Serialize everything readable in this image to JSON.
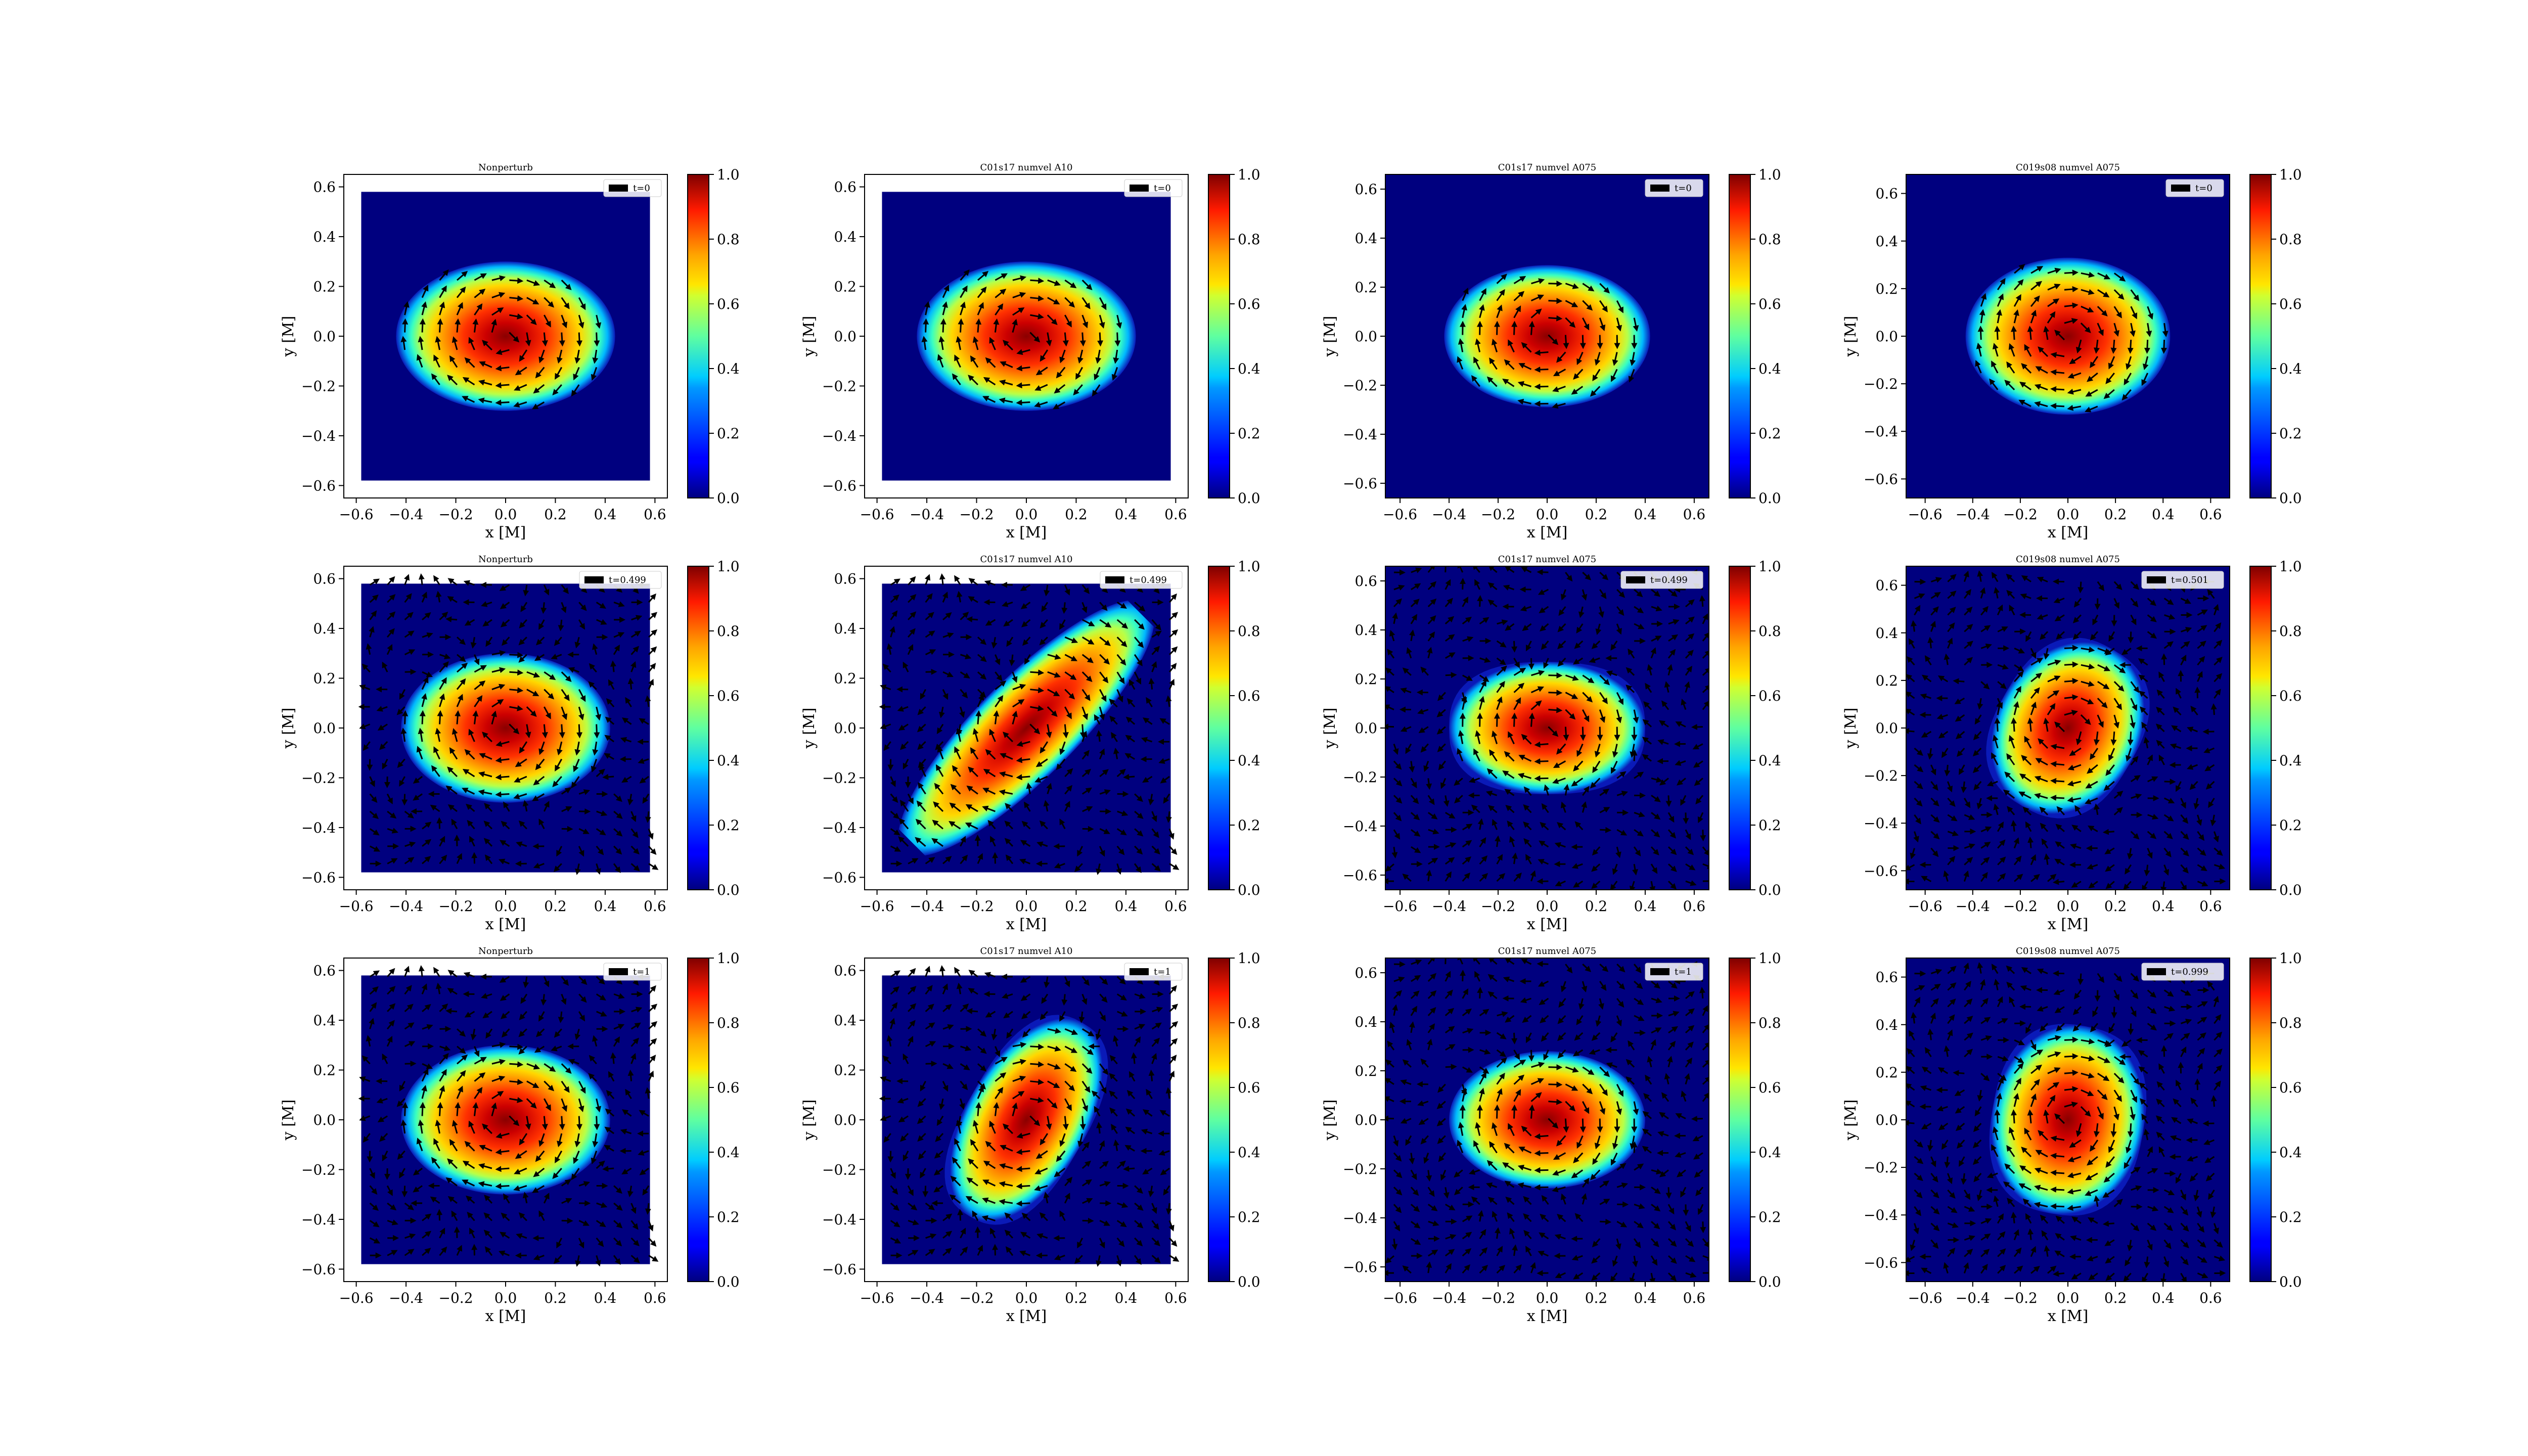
{
  "figure": {
    "rows": 3,
    "cols": 4,
    "colormap": "jet",
    "background": "#ffffff"
  },
  "chart_data": [
    {
      "type": "heatmap",
      "title": "Nonperturb",
      "time_label": "t=0",
      "xlabel": "x [M]",
      "ylabel": "y [M]",
      "xlim": [
        -0.65,
        0.65
      ],
      "ylim": [
        -0.65,
        0.65
      ],
      "xticks": [
        "−0.6",
        "−0.4",
        "−0.2",
        "0.0",
        "0.2",
        "0.4",
        "0.6"
      ],
      "yticks": [
        "−0.6",
        "−0.4",
        "−0.2",
        "0.0",
        "0.2",
        "0.4",
        "0.6"
      ],
      "domain": [
        -0.58,
        0.58,
        -0.58,
        0.58
      ],
      "field_max": 1.0,
      "blob": {
        "cx": 0.0,
        "cy": 0.0,
        "a": 0.44,
        "b": 0.3,
        "angle_deg": 0,
        "shape": "ellipse"
      },
      "arrows": "inner",
      "colorbar": {
        "min": 0.0,
        "max": 1.0,
        "ticks": [
          "0.0",
          "0.2",
          "0.4",
          "0.6",
          "0.8",
          "1.0"
        ]
      }
    },
    {
      "type": "heatmap",
      "title": "C01s17 numvel A10",
      "time_label": "t=0",
      "xlabel": "x [M]",
      "ylabel": "y [M]",
      "xlim": [
        -0.65,
        0.65
      ],
      "ylim": [
        -0.65,
        0.65
      ],
      "xticks": [
        "−0.6",
        "−0.4",
        "−0.2",
        "0.0",
        "0.2",
        "0.4",
        "0.6"
      ],
      "yticks": [
        "−0.6",
        "−0.4",
        "−0.2",
        "0.0",
        "0.2",
        "0.4",
        "0.6"
      ],
      "domain": [
        -0.58,
        0.58,
        -0.58,
        0.58
      ],
      "field_max": 1.0,
      "blob": {
        "cx": 0.0,
        "cy": 0.0,
        "a": 0.44,
        "b": 0.3,
        "angle_deg": 0,
        "shape": "ellipse"
      },
      "arrows": "inner",
      "colorbar": {
        "min": 0.0,
        "max": 1.0,
        "ticks": [
          "0.0",
          "0.2",
          "0.4",
          "0.6",
          "0.8",
          "1.0"
        ]
      }
    },
    {
      "type": "heatmap",
      "title": "C01s17 numvel A075",
      "time_label": "t=0",
      "xlabel": "x [M]",
      "ylabel": "y [M]",
      "xlim": [
        -0.66,
        0.66
      ],
      "ylim": [
        -0.66,
        0.66
      ],
      "xticks": [
        "−0.6",
        "−0.4",
        "−0.2",
        "0.0",
        "0.2",
        "0.4",
        "0.6"
      ],
      "yticks": [
        "−0.6",
        "−0.4",
        "−0.2",
        "0.0",
        "0.2",
        "0.4",
        "0.6"
      ],
      "domain": [
        -0.66,
        0.66,
        -0.66,
        0.66
      ],
      "field_max": 1.0,
      "blob": {
        "cx": 0.0,
        "cy": 0.0,
        "a": 0.42,
        "b": 0.29,
        "angle_deg": 0,
        "shape": "ellipse"
      },
      "arrows": "inner",
      "colorbar": {
        "min": 0.0,
        "max": 1.0,
        "ticks": [
          "0.0",
          "0.2",
          "0.4",
          "0.6",
          "0.8",
          "1.0"
        ]
      }
    },
    {
      "type": "heatmap",
      "title": "C019s08 numvel A075",
      "time_label": "t=0",
      "xlabel": "x [M]",
      "ylabel": "y [M]",
      "xlim": [
        -0.68,
        0.68
      ],
      "ylim": [
        -0.68,
        0.68
      ],
      "xticks": [
        "−0.6",
        "−0.4",
        "−0.2",
        "0.0",
        "0.2",
        "0.4",
        "0.6"
      ],
      "yticks": [
        "−0.6",
        "−0.4",
        "−0.2",
        "0.0",
        "0.2",
        "0.4",
        "0.6"
      ],
      "domain": [
        -0.68,
        0.68,
        -0.68,
        0.68
      ],
      "field_max": 1.0,
      "blob": {
        "cx": 0.0,
        "cy": 0.0,
        "a": 0.43,
        "b": 0.33,
        "angle_deg": 0,
        "shape": "ellipse"
      },
      "arrows": "inner",
      "colorbar": {
        "min": 0.0,
        "max": 1.0,
        "ticks": [
          "0.0",
          "0.2",
          "0.4",
          "0.6",
          "0.8",
          "1.0"
        ]
      }
    },
    {
      "type": "heatmap",
      "title": "Nonperturb",
      "time_label": "t=0.499",
      "xlabel": "x [M]",
      "ylabel": "y [M]",
      "xlim": [
        -0.65,
        0.65
      ],
      "ylim": [
        -0.65,
        0.65
      ],
      "xticks": [
        "−0.6",
        "−0.4",
        "−0.2",
        "0.0",
        "0.2",
        "0.4",
        "0.6"
      ],
      "yticks": [
        "−0.6",
        "−0.4",
        "−0.2",
        "0.0",
        "0.2",
        "0.4",
        "0.6"
      ],
      "domain": [
        -0.58,
        0.58,
        -0.58,
        0.58
      ],
      "field_max": 1.0,
      "blob": {
        "cx": 0.0,
        "cy": 0.0,
        "a": 0.42,
        "b": 0.3,
        "angle_deg": 0,
        "shape": "ellipse"
      },
      "arrows": "full",
      "colorbar": {
        "min": 0.0,
        "max": 1.0,
        "ticks": [
          "0.0",
          "0.2",
          "0.4",
          "0.6",
          "0.8",
          "1.0"
        ]
      }
    },
    {
      "type": "heatmap",
      "title": "C01s17 numvel A10",
      "time_label": "t=0.499",
      "xlabel": "x [M]",
      "ylabel": "y [M]",
      "xlim": [
        -0.65,
        0.65
      ],
      "ylim": [
        -0.65,
        0.65
      ],
      "xticks": [
        "−0.6",
        "−0.4",
        "−0.2",
        "0.0",
        "0.2",
        "0.4",
        "0.6"
      ],
      "yticks": [
        "−0.6",
        "−0.4",
        "−0.2",
        "0.0",
        "0.2",
        "0.4",
        "0.6"
      ],
      "domain": [
        -0.58,
        0.58,
        -0.58,
        0.58
      ],
      "field_max": 1.0,
      "blob": {
        "cx": 0.0,
        "cy": 0.0,
        "a": 0.7,
        "b": 0.2,
        "angle_deg": 45,
        "shape": "ellipse"
      },
      "arrows": "full",
      "colorbar": {
        "min": 0.0,
        "max": 1.0,
        "ticks": [
          "0.0",
          "0.2",
          "0.4",
          "0.6",
          "0.8",
          "1.0"
        ]
      }
    },
    {
      "type": "heatmap",
      "title": "C01s17 numvel A075",
      "time_label": "t=0.499",
      "xlabel": "x [M]",
      "ylabel": "y [M]",
      "xlim": [
        -0.66,
        0.66
      ],
      "ylim": [
        -0.66,
        0.66
      ],
      "xticks": [
        "−0.6",
        "−0.4",
        "−0.2",
        "0.0",
        "0.2",
        "0.4",
        "0.6"
      ],
      "yticks": [
        "−0.6",
        "−0.4",
        "−0.2",
        "0.0",
        "0.2",
        "0.4",
        "0.6"
      ],
      "domain": [
        -0.66,
        0.66,
        -0.66,
        0.66
      ],
      "field_max": 1.0,
      "blob": {
        "cx": 0.0,
        "cy": 0.0,
        "a": 0.4,
        "b": 0.27,
        "angle_deg": 0,
        "shape": "superellipse"
      },
      "arrows": "full",
      "colorbar": {
        "min": 0.0,
        "max": 1.0,
        "ticks": [
          "0.0",
          "0.2",
          "0.4",
          "0.6",
          "0.8",
          "1.0"
        ]
      }
    },
    {
      "type": "heatmap",
      "title": "C019s08 numvel A075",
      "time_label": "t=0.501",
      "xlabel": "x [M]",
      "ylabel": "y [M]",
      "xlim": [
        -0.68,
        0.68
      ],
      "ylim": [
        -0.68,
        0.68
      ],
      "xticks": [
        "−0.6",
        "−0.4",
        "−0.2",
        "0.0",
        "0.2",
        "0.4",
        "0.6"
      ],
      "yticks": [
        "−0.6",
        "−0.4",
        "−0.2",
        "0.0",
        "0.2",
        "0.4",
        "0.6"
      ],
      "domain": [
        -0.68,
        0.68,
        -0.68,
        0.68
      ],
      "field_max": 1.0,
      "blob": {
        "cx": 0.0,
        "cy": 0.0,
        "a": 0.38,
        "b": 0.3,
        "angle_deg": 60,
        "shape": "superellipse"
      },
      "arrows": "full",
      "colorbar": {
        "min": 0.0,
        "max": 1.0,
        "ticks": [
          "0.0",
          "0.2",
          "0.4",
          "0.6",
          "0.8",
          "1.0"
        ]
      }
    },
    {
      "type": "heatmap",
      "title": "Nonperturb",
      "time_label": "t=1",
      "xlabel": "x [M]",
      "ylabel": "y [M]",
      "xlim": [
        -0.65,
        0.65
      ],
      "ylim": [
        -0.65,
        0.65
      ],
      "xticks": [
        "−0.6",
        "−0.4",
        "−0.2",
        "0.0",
        "0.2",
        "0.4",
        "0.6"
      ],
      "yticks": [
        "−0.6",
        "−0.4",
        "−0.2",
        "0.0",
        "0.2",
        "0.4",
        "0.6"
      ],
      "domain": [
        -0.58,
        0.58,
        -0.58,
        0.58
      ],
      "field_max": 1.0,
      "blob": {
        "cx": 0.0,
        "cy": 0.0,
        "a": 0.42,
        "b": 0.3,
        "angle_deg": 0,
        "shape": "ellipse"
      },
      "arrows": "full",
      "colorbar": {
        "min": 0.0,
        "max": 1.0,
        "ticks": [
          "0.0",
          "0.2",
          "0.4",
          "0.6",
          "0.8",
          "1.0"
        ]
      }
    },
    {
      "type": "heatmap",
      "title": "C01s17 numvel A10",
      "time_label": "t=1",
      "xlabel": "x [M]",
      "ylabel": "y [M]",
      "xlim": [
        -0.65,
        0.65
      ],
      "ylim": [
        -0.65,
        0.65
      ],
      "xticks": [
        "−0.6",
        "−0.4",
        "−0.2",
        "0.0",
        "0.2",
        "0.4",
        "0.6"
      ],
      "yticks": [
        "−0.6",
        "−0.4",
        "−0.2",
        "0.0",
        "0.2",
        "0.4",
        "0.6"
      ],
      "domain": [
        -0.58,
        0.58,
        -0.58,
        0.58
      ],
      "field_max": 1.0,
      "blob": {
        "cx": 0.0,
        "cy": 0.0,
        "a": 0.45,
        "b": 0.24,
        "angle_deg": 60,
        "shape": "superellipse"
      },
      "arrows": "full",
      "colorbar": {
        "min": 0.0,
        "max": 1.0,
        "ticks": [
          "0.0",
          "0.2",
          "0.4",
          "0.6",
          "0.8",
          "1.0"
        ]
      }
    },
    {
      "type": "heatmap",
      "title": "C01s17 numvel A075",
      "time_label": "t=1",
      "xlabel": "x [M]",
      "ylabel": "y [M]",
      "xlim": [
        -0.66,
        0.66
      ],
      "ylim": [
        -0.66,
        0.66
      ],
      "xticks": [
        "−0.6",
        "−0.4",
        "−0.2",
        "0.0",
        "0.2",
        "0.4",
        "0.6"
      ],
      "yticks": [
        "−0.6",
        "−0.4",
        "−0.2",
        "0.0",
        "0.2",
        "0.4",
        "0.6"
      ],
      "domain": [
        -0.66,
        0.66,
        -0.66,
        0.66
      ],
      "field_max": 1.0,
      "blob": {
        "cx": 0.0,
        "cy": 0.0,
        "a": 0.4,
        "b": 0.28,
        "angle_deg": 0,
        "shape": "ellipse"
      },
      "arrows": "full",
      "colorbar": {
        "min": 0.0,
        "max": 1.0,
        "ticks": [
          "0.0",
          "0.2",
          "0.4",
          "0.6",
          "0.8",
          "1.0"
        ]
      }
    },
    {
      "type": "heatmap",
      "title": "C019s08 numvel A075",
      "time_label": "t=0.999",
      "xlabel": "x [M]",
      "ylabel": "y [M]",
      "xlim": [
        -0.68,
        0.68
      ],
      "ylim": [
        -0.68,
        0.68
      ],
      "xticks": [
        "−0.6",
        "−0.4",
        "−0.2",
        "0.0",
        "0.2",
        "0.4",
        "0.6"
      ],
      "yticks": [
        "−0.6",
        "−0.4",
        "−0.2",
        "0.0",
        "0.2",
        "0.4",
        "0.6"
      ],
      "domain": [
        -0.68,
        0.68,
        -0.68,
        0.68
      ],
      "field_max": 1.0,
      "blob": {
        "cx": 0.0,
        "cy": 0.0,
        "a": 0.4,
        "b": 0.32,
        "angle_deg": 80,
        "shape": "superellipse"
      },
      "arrows": "full",
      "colorbar": {
        "min": 0.0,
        "max": 1.0,
        "ticks": [
          "0.0",
          "0.2",
          "0.4",
          "0.6",
          "0.8",
          "1.0"
        ]
      }
    }
  ]
}
